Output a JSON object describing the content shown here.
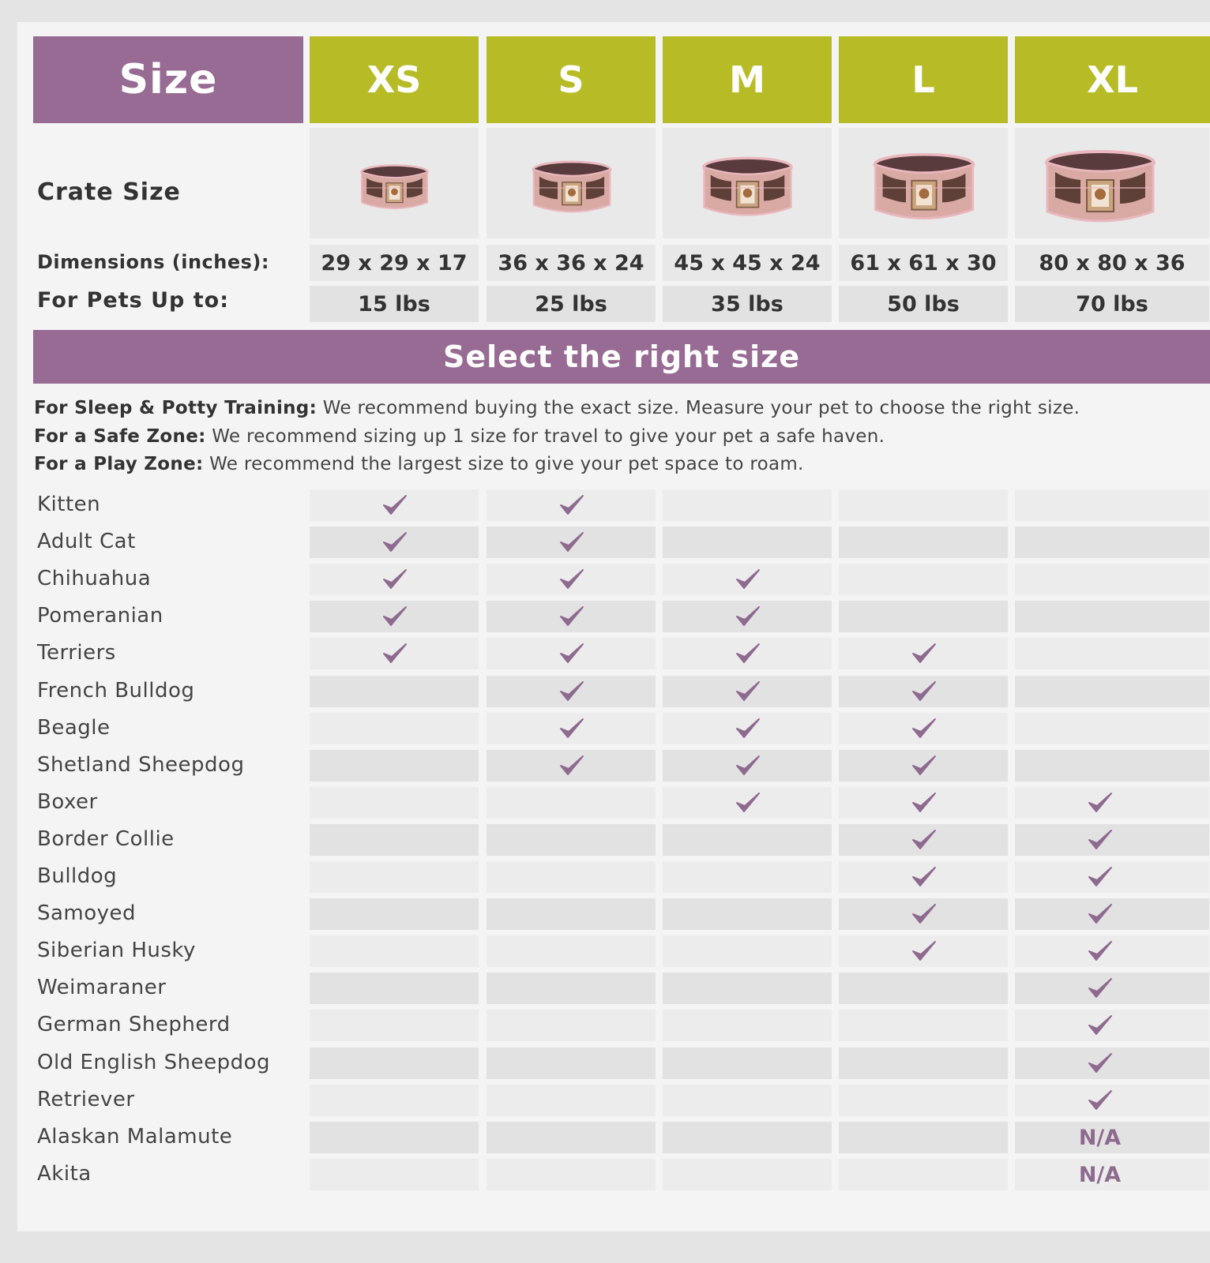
{
  "header": {
    "size_label": "Size",
    "sizes": [
      "XS",
      "S",
      "M",
      "L",
      "XL"
    ]
  },
  "crate_row": {
    "label": "Crate Size"
  },
  "dimensions_row": {
    "label": "Dimensions (inches):",
    "values": [
      "29 x 29 x 17",
      "36 x 36 x 24",
      "45 x 45 x 24",
      "61 x 61 x 30",
      "80 x 80 x 36"
    ]
  },
  "weight_row": {
    "label": "For Pets Up to:",
    "values": [
      "15 lbs",
      "25 lbs",
      "35 lbs",
      "50 lbs",
      "70 lbs"
    ]
  },
  "banner": "Select the right size",
  "notes": [
    {
      "label": "For Sleep & Potty Training:",
      "text": " We recommend buying the exact size. Measure your pet to choose the right size."
    },
    {
      "label": "For a Safe Zone:",
      "text": " We recommend sizing up 1 size for travel to give your pet a safe haven."
    },
    {
      "label": "For a Play Zone:",
      "text": " We recommend the largest size to give your pet space to roam."
    }
  ],
  "colors": {
    "purple": "#976b93",
    "lime": "#b7bc26",
    "check": "#8e6a8f"
  },
  "breeds": [
    {
      "name": "Kitten",
      "marks": [
        "check",
        "check",
        "",
        "",
        ""
      ]
    },
    {
      "name": "Adult Cat",
      "marks": [
        "check",
        "check",
        "",
        "",
        ""
      ]
    },
    {
      "name": "Chihuahua",
      "marks": [
        "check",
        "check",
        "check",
        "",
        ""
      ]
    },
    {
      "name": "Pomeranian",
      "marks": [
        "check",
        "check",
        "check",
        "",
        ""
      ]
    },
    {
      "name": "Terriers",
      "marks": [
        "check",
        "check",
        "check",
        "check",
        ""
      ]
    },
    {
      "name": "French Bulldog",
      "marks": [
        "",
        "check",
        "check",
        "check",
        ""
      ]
    },
    {
      "name": "Beagle",
      "marks": [
        "",
        "check",
        "check",
        "check",
        ""
      ]
    },
    {
      "name": "Shetland Sheepdog",
      "marks": [
        "",
        "check",
        "check",
        "check",
        ""
      ]
    },
    {
      "name": "Boxer",
      "marks": [
        "",
        "",
        "check",
        "check",
        "check"
      ]
    },
    {
      "name": "Border Collie",
      "marks": [
        "",
        "",
        "",
        "check",
        "check"
      ]
    },
    {
      "name": "Bulldog",
      "marks": [
        "",
        "",
        "",
        "check",
        "check"
      ]
    },
    {
      "name": "Samoyed",
      "marks": [
        "",
        "",
        "",
        "check",
        "check"
      ]
    },
    {
      "name": "Siberian Husky",
      "marks": [
        "",
        "",
        "",
        "check",
        "check"
      ]
    },
    {
      "name": "Weimaraner",
      "marks": [
        "",
        "",
        "",
        "",
        "check"
      ]
    },
    {
      "name": "German Shepherd",
      "marks": [
        "",
        "",
        "",
        "",
        "check"
      ]
    },
    {
      "name": "Old English Sheepdog",
      "marks": [
        "",
        "",
        "",
        "",
        "check"
      ]
    },
    {
      "name": "Retriever",
      "marks": [
        "",
        "",
        "",
        "",
        "check"
      ]
    },
    {
      "name": "Alaskan Malamute",
      "marks": [
        "",
        "",
        "",
        "",
        "N/A"
      ]
    },
    {
      "name": "Akita",
      "marks": [
        "",
        "",
        "",
        "",
        "N/A"
      ]
    }
  ]
}
